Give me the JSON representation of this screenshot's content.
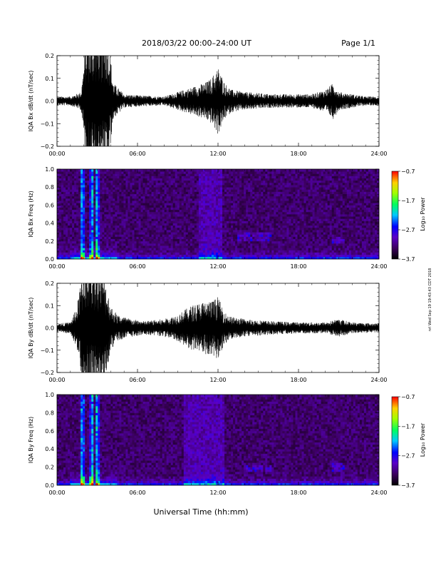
{
  "header": {
    "date_range": "2018/03/22  00:00–24:00 UT",
    "page": "Page 1/1"
  },
  "footer": {
    "xlabel": "Universal Time (hh:mm)",
    "stamp": "nrl Wed Sep 19 19:43:43 CDT 2018"
  },
  "chart_data": [
    {
      "type": "line",
      "ylabel": "IQA Bx dB/dt (nT/sec)",
      "xlim": [
        0,
        24
      ],
      "ylim": [
        -0.2,
        0.2
      ],
      "x_ticks": [
        "00:00",
        "06:00",
        "12:00",
        "18:00",
        "24:00"
      ],
      "y_ticks": [
        "0.2",
        "0.1",
        "0.0",
        "−0.1",
        "−0.2"
      ],
      "envelope_hours": [
        0,
        1,
        1.8,
        2.2,
        3.0,
        3.8,
        4.2,
        5,
        6,
        8,
        9,
        10,
        10.5,
        11,
        11.5,
        12,
        12.5,
        13,
        14,
        15,
        16,
        17,
        18,
        19,
        20,
        20.6,
        21,
        22,
        23,
        24
      ],
      "envelope_amp": [
        0.02,
        0.02,
        0.04,
        0.3,
        0.3,
        0.3,
        0.08,
        0.03,
        0.025,
        0.02,
        0.04,
        0.06,
        0.07,
        0.08,
        0.1,
        0.15,
        0.08,
        0.05,
        0.04,
        0.035,
        0.03,
        0.03,
        0.03,
        0.03,
        0.05,
        0.08,
        0.04,
        0.03,
        0.02,
        0.02
      ]
    },
    {
      "type": "heatmap",
      "ylabel": "IQA Bx Freq (Hz)",
      "xlim": [
        0,
        24
      ],
      "ylim": [
        0,
        1
      ],
      "x_ticks": [
        "00:00",
        "06:00",
        "12:00",
        "18:00",
        "24:00"
      ],
      "y_ticks": [
        "1.0",
        "0.8",
        "0.6",
        "0.4",
        "0.2",
        "0.0"
      ],
      "colorbar": {
        "label": "Log₁₀ Power",
        "ticks": [
          "−0.7",
          "−1.7",
          "−2.7",
          "−3.7"
        ],
        "range": [
          -3.7,
          -0.7
        ]
      },
      "bright_columns_hours": [
        1.9,
        2.6,
        3.0
      ],
      "broadband_hours": [
        [
          10.5,
          12.3
        ]
      ],
      "band_features": [
        {
          "hours": [
            13.5,
            16
          ],
          "freq": 0.25
        },
        {
          "hours": [
            20.5,
            21.5
          ],
          "freq": 0.22
        }
      ]
    },
    {
      "type": "line",
      "ylabel": "IQA By dB/dt (nT/sec)",
      "xlim": [
        0,
        24
      ],
      "ylim": [
        -0.2,
        0.2
      ],
      "x_ticks": [
        "00:00",
        "06:00",
        "12:00",
        "18:00",
        "24:00"
      ],
      "y_ticks": [
        "0.2",
        "0.1",
        "0.0",
        "−0.1",
        "−0.2"
      ],
      "envelope_hours": [
        0,
        1,
        1.5,
        2.0,
        2.5,
        3.0,
        3.5,
        4.0,
        4.5,
        5.5,
        6.5,
        8,
        9,
        9.5,
        10,
        10.5,
        11,
        11.5,
        12,
        12.5,
        13,
        14,
        15,
        16,
        18,
        20,
        21,
        22,
        24
      ],
      "envelope_amp": [
        0.02,
        0.025,
        0.1,
        0.3,
        0.3,
        0.3,
        0.25,
        0.1,
        0.06,
        0.04,
        0.03,
        0.04,
        0.06,
        0.08,
        0.1,
        0.11,
        0.12,
        0.12,
        0.14,
        0.07,
        0.05,
        0.04,
        0.035,
        0.03,
        0.025,
        0.025,
        0.04,
        0.025,
        0.02
      ]
    },
    {
      "type": "heatmap",
      "ylabel": "IQA By Freq (Hz)",
      "xlim": [
        0,
        24
      ],
      "ylim": [
        0,
        1
      ],
      "x_ticks": [
        "00:00",
        "06:00",
        "12:00",
        "18:00",
        "24:00"
      ],
      "y_ticks": [
        "1.0",
        "0.8",
        "0.6",
        "0.4",
        "0.2",
        "0.0"
      ],
      "colorbar": {
        "label": "Log₁₀ Power",
        "ticks": [
          "−0.7",
          "−1.7",
          "−2.7",
          "−3.7"
        ],
        "range": [
          -3.7,
          -0.7
        ]
      },
      "bright_columns_hours": [
        1.9,
        2.6,
        3.0
      ],
      "broadband_hours": [
        [
          9.5,
          12.5
        ]
      ],
      "band_features": [
        {
          "hours": [
            14,
            16
          ],
          "freq": 0.18
        },
        {
          "hours": [
            20.5,
            21.5
          ],
          "freq": 0.2
        }
      ]
    }
  ]
}
